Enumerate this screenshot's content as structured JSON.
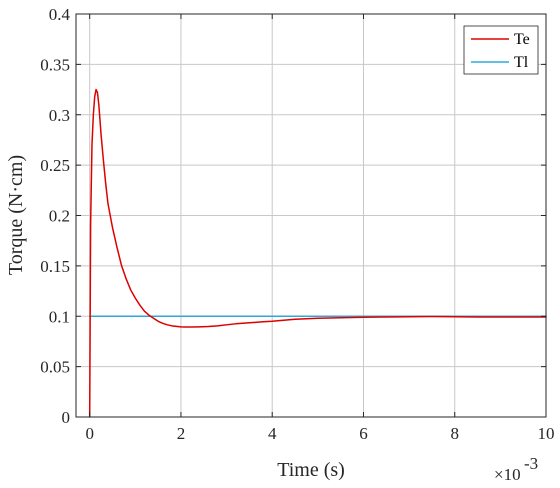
{
  "chart_data": {
    "type": "line",
    "title": "",
    "xlabel": "Time (s)",
    "ylabel": "Torque (N·cm)",
    "x_exponent_label": "×10",
    "x_exponent_power": "-3",
    "xlim": [
      -0.3,
      10
    ],
    "ylim": [
      0,
      0.4
    ],
    "xticks": [
      0,
      2,
      4,
      6,
      8,
      10
    ],
    "xtick_labels": [
      "0",
      "2",
      "4",
      "6",
      "8",
      "10"
    ],
    "yticks": [
      0,
      0.05,
      0.1,
      0.15,
      0.2,
      0.25,
      0.3,
      0.35,
      0.4
    ],
    "ytick_labels": [
      "0",
      "0.05",
      "0.1",
      "0.15",
      "0.2",
      "0.25",
      "0.3",
      "0.35",
      "0.4"
    ],
    "grid": true,
    "legend_position": "top-right",
    "series": [
      {
        "name": "Te",
        "color": "#dd0000",
        "x": [
          0,
          0.02,
          0.05,
          0.08,
          0.11,
          0.14,
          0.17,
          0.2,
          0.25,
          0.3,
          0.35,
          0.4,
          0.5,
          0.6,
          0.7,
          0.8,
          0.9,
          1.0,
          1.1,
          1.2,
          1.3,
          1.4,
          1.5,
          1.6,
          1.7,
          1.8,
          1.9,
          2.0,
          2.1,
          2.2,
          2.4,
          2.6,
          2.8,
          3.0,
          3.2,
          3.5,
          3.8,
          4.0,
          4.5,
          5.0,
          5.5,
          6.0,
          6.5,
          7.0,
          7.5,
          8.0,
          8.5,
          9.0,
          9.5,
          10.0
        ],
        "values": [
          0.0,
          0.19,
          0.27,
          0.3,
          0.318,
          0.325,
          0.322,
          0.31,
          0.28,
          0.255,
          0.232,
          0.212,
          0.188,
          0.168,
          0.15,
          0.137,
          0.126,
          0.118,
          0.111,
          0.105,
          0.101,
          0.098,
          0.095,
          0.093,
          0.0915,
          0.0905,
          0.09,
          0.0895,
          0.0893,
          0.0893,
          0.0895,
          0.0898,
          0.0905,
          0.0915,
          0.0925,
          0.0935,
          0.0945,
          0.095,
          0.097,
          0.098,
          0.0985,
          0.099,
          0.0993,
          0.0995,
          0.0997,
          0.0995,
          0.0993,
          0.0993,
          0.0993,
          0.0993
        ]
      },
      {
        "name": "Tl",
        "color": "#2fa8d8",
        "x": [
          0,
          10
        ],
        "values": [
          0.1,
          0.1
        ]
      }
    ]
  }
}
